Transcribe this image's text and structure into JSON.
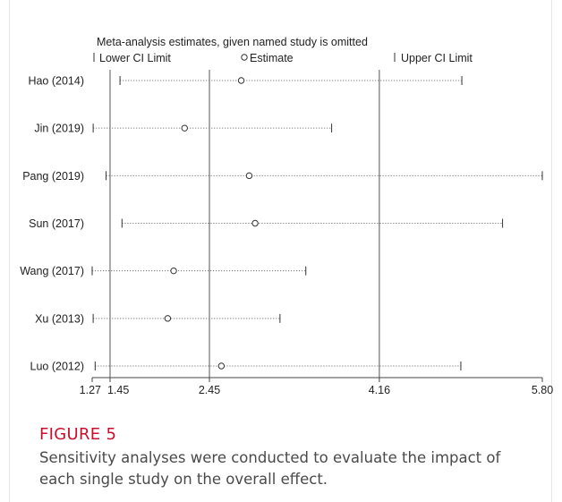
{
  "chart_data": {
    "type": "scatter",
    "title": "Meta-analysis estimates, given named study is omitted",
    "legend": {
      "lower": "Lower CI Limit",
      "estimate": "Estimate",
      "upper": "Upper CI Limit",
      "placement": "top"
    },
    "xlim": [
      1.27,
      5.8
    ],
    "x_ticks": [
      "1.27",
      "1.45",
      "2.45",
      "4.16",
      "5.80"
    ],
    "x_tick_values": [
      1.27,
      1.45,
      2.45,
      4.16,
      5.8
    ],
    "reference_lines": [
      1.45,
      2.45,
      4.16
    ],
    "studies": [
      {
        "label": "Hao (2014)",
        "lower": 1.55,
        "estimate": 2.77,
        "upper": 4.99
      },
      {
        "label": "Jin (2019)",
        "lower": 1.28,
        "estimate": 2.2,
        "upper": 3.68
      },
      {
        "label": "Pang (2019)",
        "lower": 1.41,
        "estimate": 2.85,
        "upper": 5.8
      },
      {
        "label": "Sun (2017)",
        "lower": 1.57,
        "estimate": 2.91,
        "upper": 5.4
      },
      {
        "label": "Wang (2017)",
        "lower": 1.27,
        "estimate": 2.09,
        "upper": 3.42
      },
      {
        "label": "Xu (2013)",
        "lower": 1.28,
        "estimate": 2.03,
        "upper": 3.16
      },
      {
        "label": "Luo (2012)",
        "lower": 1.3,
        "estimate": 2.57,
        "upper": 4.98
      }
    ]
  },
  "figure": {
    "label": "FIGURE 5",
    "caption": "Sensitivity analyses were conducted to evaluate the impact of each single study on the overall effect."
  }
}
